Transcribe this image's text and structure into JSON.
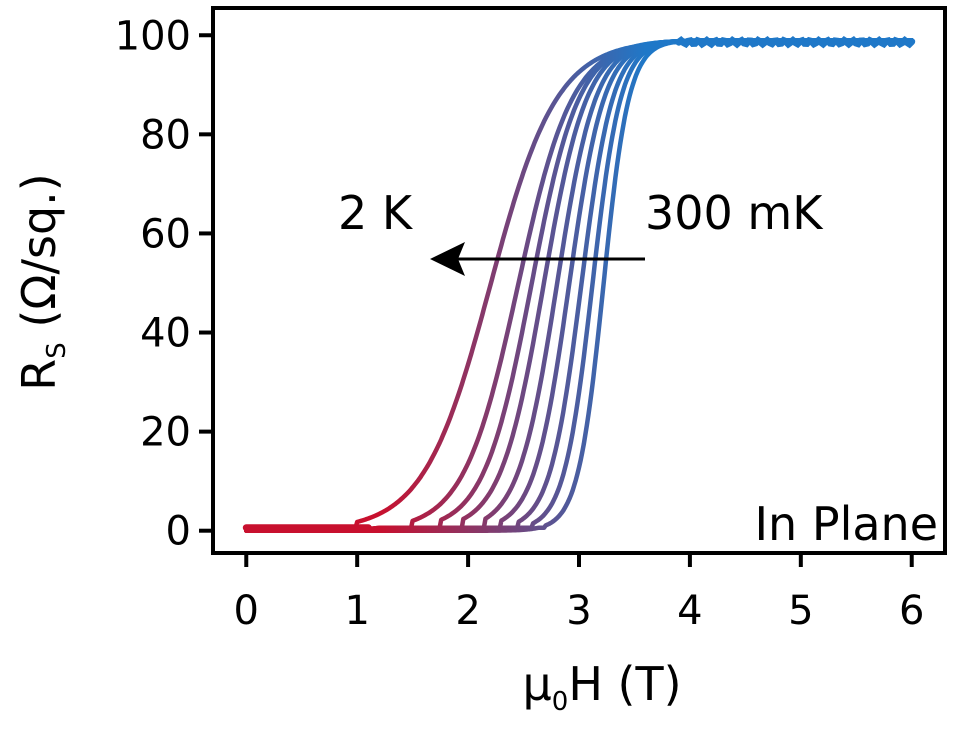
{
  "chart_data": {
    "type": "line",
    "xlabel": "μ0H (T)",
    "ylabel": "Rs (Ω/sq.)",
    "xlim": [
      -0.3,
      6.3
    ],
    "ylim": [
      -4.5,
      105.5
    ],
    "x_ticks": [
      0,
      1,
      2,
      3,
      4,
      5,
      6
    ],
    "y_ticks": [
      0,
      20,
      40,
      60,
      80,
      100
    ],
    "grid": false,
    "legend": "none",
    "color_gradient": {
      "from": "#c8102e",
      "to": "#1f78c8"
    },
    "series": [
      {
        "x_mid": 2.2,
        "width": 0.3,
        "onset": 1.0,
        "y_high": 99
      },
      {
        "x_mid": 2.45,
        "width": 0.245,
        "onset": 1.5,
        "y_high": 99
      },
      {
        "x_mid": 2.57,
        "width": 0.215,
        "onset": 1.75,
        "y_high": 99
      },
      {
        "x_mid": 2.68,
        "width": 0.195,
        "onset": 1.95,
        "y_high": 99
      },
      {
        "x_mid": 2.8,
        "width": 0.175,
        "onset": 2.15,
        "y_high": 99
      },
      {
        "x_mid": 2.91,
        "width": 0.158,
        "onset": 2.3,
        "y_high": 99
      },
      {
        "x_mid": 3.02,
        "width": 0.142,
        "onset": 2.45,
        "y_high": 99
      },
      {
        "x_mid": 3.12,
        "width": 0.128,
        "onset": 2.58,
        "y_high": 99
      },
      {
        "x_mid": 3.22,
        "width": 0.115,
        "onset": 2.7,
        "y_high": 99
      }
    ],
    "annotations": {
      "label_high_T": "2 K",
      "label_low_T": "300 mK",
      "panel_label": "In Plane"
    }
  }
}
